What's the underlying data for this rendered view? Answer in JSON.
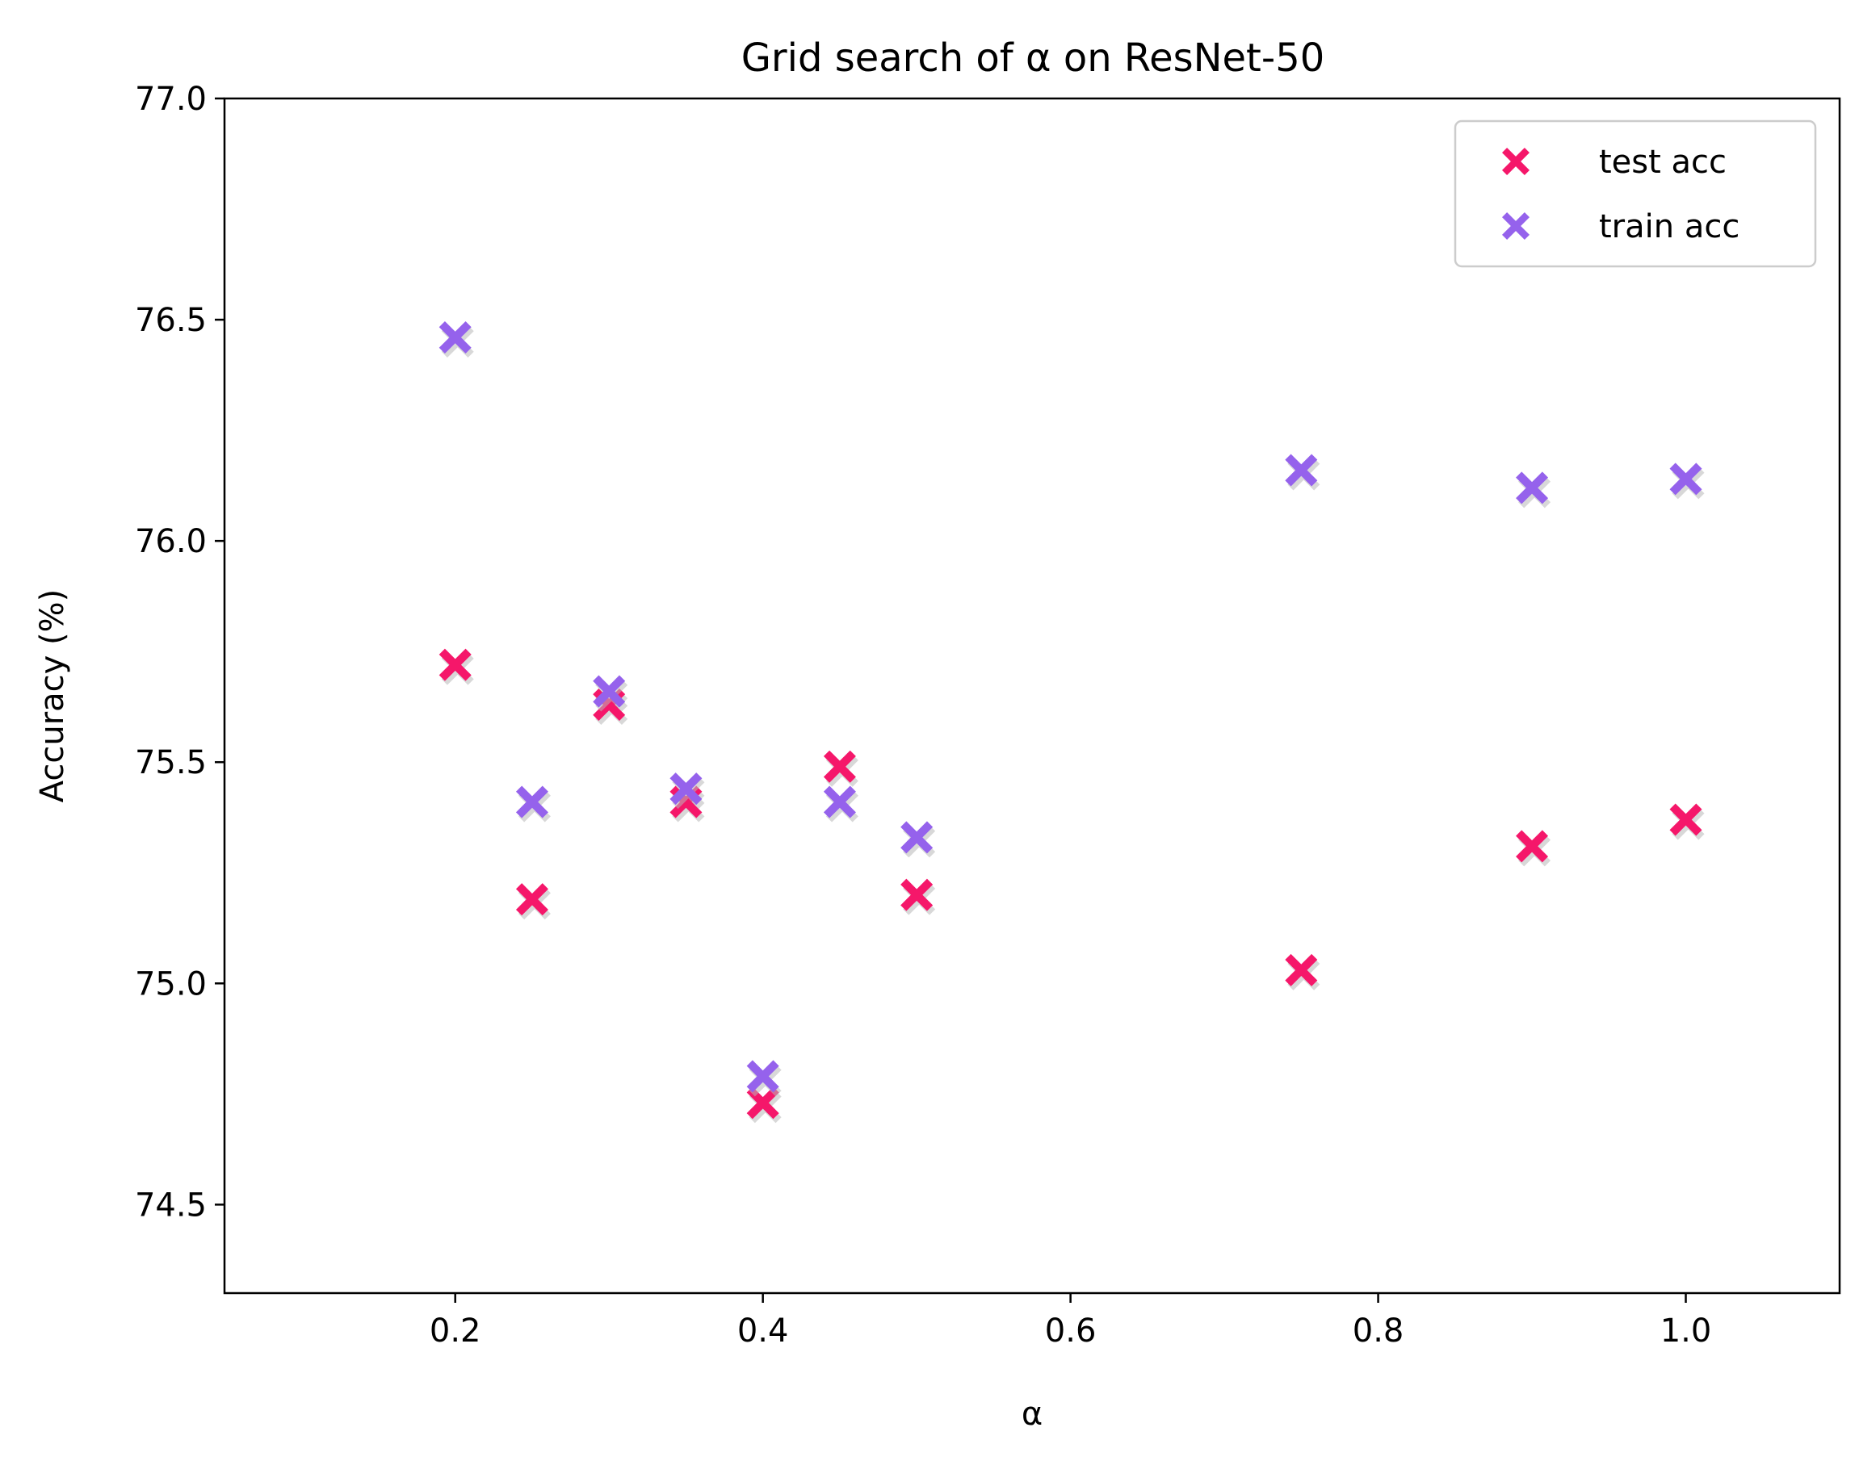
{
  "chart_data": {
    "type": "scatter",
    "title": "Grid search of α on ResNet-50",
    "xlabel": "α",
    "ylabel": "Accuracy (%)",
    "xlim": [
      0.05,
      1.1
    ],
    "ylim": [
      74.3,
      77.0
    ],
    "xticks": [
      "0.2",
      "0.4",
      "0.6",
      "0.8",
      "1.0"
    ],
    "yticks": [
      "74.5",
      "75.0",
      "75.5",
      "76.0",
      "76.5",
      "77.0"
    ],
    "grid": false,
    "legend_position": "top-right",
    "marker": "X",
    "series": [
      {
        "name": "test acc",
        "color": "#F5176A",
        "points": [
          {
            "x": 0.2,
            "y": 75.72
          },
          {
            "x": 0.25,
            "y": 75.19
          },
          {
            "x": 0.3,
            "y": 75.63
          },
          {
            "x": 0.35,
            "y": 75.41
          },
          {
            "x": 0.4,
            "y": 74.73
          },
          {
            "x": 0.45,
            "y": 75.49
          },
          {
            "x": 0.5,
            "y": 75.2
          },
          {
            "x": 0.75,
            "y": 75.03
          },
          {
            "x": 0.9,
            "y": 75.31
          },
          {
            "x": 1.0,
            "y": 75.37
          }
        ]
      },
      {
        "name": "train acc",
        "color": "#9562EC",
        "points": [
          {
            "x": 0.2,
            "y": 76.46
          },
          {
            "x": 0.25,
            "y": 75.41
          },
          {
            "x": 0.3,
            "y": 75.66
          },
          {
            "x": 0.35,
            "y": 75.44
          },
          {
            "x": 0.4,
            "y": 74.79
          },
          {
            "x": 0.45,
            "y": 75.41
          },
          {
            "x": 0.5,
            "y": 75.33
          },
          {
            "x": 0.75,
            "y": 76.16
          },
          {
            "x": 0.9,
            "y": 76.12
          },
          {
            "x": 1.0,
            "y": 76.14
          }
        ]
      }
    ]
  }
}
